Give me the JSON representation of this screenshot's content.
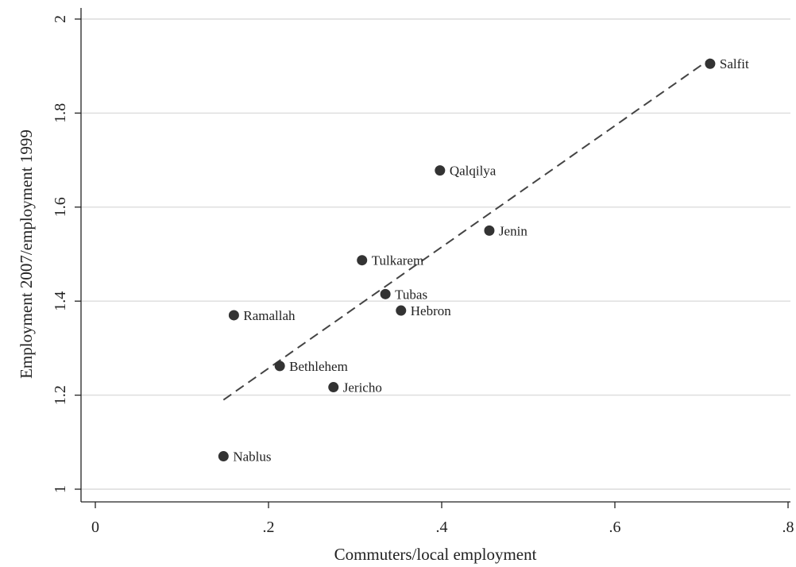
{
  "chart_data": {
    "type": "scatter",
    "title": "",
    "xlabel": "Commuters/local employment",
    "ylabel": "Employment 2007/employment 1999",
    "xlim": [
      0,
      0.8
    ],
    "ylim": [
      1,
      2
    ],
    "x_ticks": [
      0,
      0.2,
      0.4,
      0.6,
      0.8
    ],
    "x_tick_labels": [
      "0",
      ".2",
      ".4",
      ".6",
      ".8"
    ],
    "y_ticks": [
      1,
      1.2,
      1.4,
      1.6,
      1.8,
      2
    ],
    "y_tick_labels": [
      "1",
      "1.2",
      "1.4",
      "1.6",
      "1.8",
      "2"
    ],
    "grid": "horizontal",
    "points": [
      {
        "label": "Salfit",
        "x": 0.71,
        "y": 1.905
      },
      {
        "label": "Qalqilya",
        "x": 0.398,
        "y": 1.678
      },
      {
        "label": "Jenin",
        "x": 0.455,
        "y": 1.55
      },
      {
        "label": "Tulkarem",
        "x": 0.308,
        "y": 1.487
      },
      {
        "label": "Tubas",
        "x": 0.335,
        "y": 1.415
      },
      {
        "label": "Hebron",
        "x": 0.353,
        "y": 1.38
      },
      {
        "label": "Ramallah",
        "x": 0.16,
        "y": 1.37
      },
      {
        "label": "Bethlehem",
        "x": 0.213,
        "y": 1.262
      },
      {
        "label": "Jericho",
        "x": 0.275,
        "y": 1.217
      },
      {
        "label": "Nablus",
        "x": 0.148,
        "y": 1.07
      }
    ],
    "fit_line": {
      "x": [
        0.148,
        0.71
      ],
      "y": [
        1.19,
        1.915
      ],
      "style": "dashed"
    },
    "colors": {
      "marker": "#333333",
      "line": "#444444",
      "grid": "#dcdcdc"
    }
  }
}
